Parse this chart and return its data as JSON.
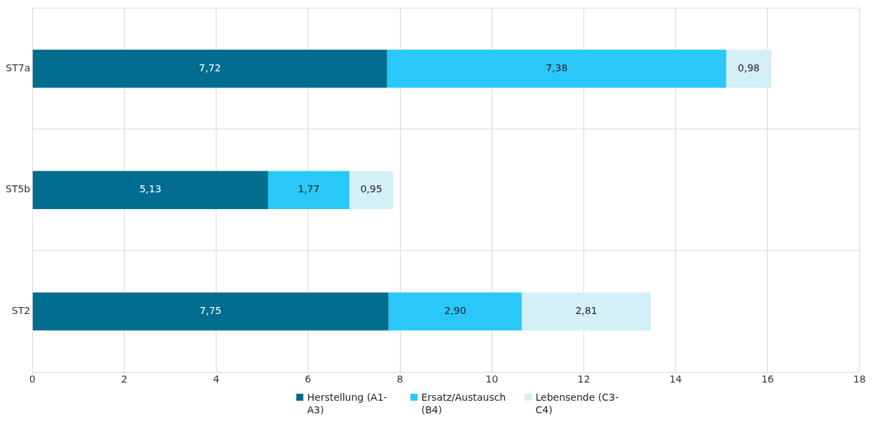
{
  "chart_data": {
    "type": "bar",
    "orientation": "horizontal",
    "stacked": true,
    "categories": [
      "ST7a",
      "ST5b",
      "ST2"
    ],
    "series": [
      {
        "name": "Herstellung (A1-A3)",
        "color": "#006d8f",
        "values": [
          7.72,
          5.13,
          7.75
        ],
        "value_labels": [
          "7,72",
          "5,13",
          "7,75"
        ]
      },
      {
        "name": "Ersatz/Austausch (B4)",
        "color": "#29c8f8",
        "values": [
          7.38,
          1.77,
          2.9
        ],
        "value_labels": [
          "7,38",
          "1,77",
          "2,90"
        ]
      },
      {
        "name": "Lebensende (C3-C4)",
        "color": "#d3eff7",
        "values": [
          0.98,
          0.95,
          2.81
        ],
        "value_labels": [
          "0,98",
          "0,95",
          "2,81"
        ]
      }
    ],
    "xlim": [
      0,
      18
    ],
    "xticks": [
      0,
      2,
      4,
      6,
      8,
      10,
      12,
      14,
      16,
      18
    ],
    "grid": true,
    "legend": "bottom"
  }
}
